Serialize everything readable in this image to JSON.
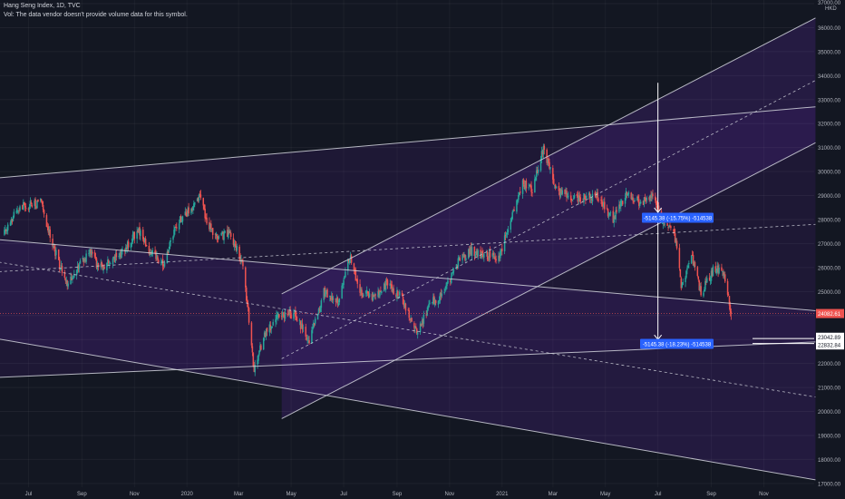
{
  "header": {
    "title": "Hang Seng Index, 1D, TVC",
    "volume_note": "Vol: The data vendor doesn't provide volume data for this symbol."
  },
  "y_axis": {
    "unit": "HKD",
    "ticks": [
      "17000.00",
      "18000.00",
      "19000.00",
      "20000.00",
      "21000.00",
      "22000.00",
      "23000.00",
      "24000.00",
      "25000.00",
      "26000.00",
      "27000.00",
      "28000.00",
      "29000.00",
      "30000.00",
      "31000.00",
      "32000.00",
      "33000.00",
      "34000.00",
      "35000.00",
      "36000.00",
      "37000.00"
    ]
  },
  "x_axis": {
    "ticks": [
      "Jul",
      "Sep",
      "Nov",
      "2020",
      "Mar",
      "May",
      "Jul",
      "Sep",
      "Nov",
      "2021",
      "Mar",
      "May",
      "Jul",
      "Sep",
      "Nov"
    ]
  },
  "price_labels": {
    "last": "24082.61",
    "level_a": "23042.89",
    "level_b": "22832.84"
  },
  "measure_labels": {
    "upper": "-5145.38 (-15.75%) -514538",
    "lower": "-5145.38 (-18.23%) -514538"
  },
  "chart_data": {
    "type": "candlestick",
    "symbol": "Hang Seng Index",
    "interval": "1D",
    "ylim": [
      16900,
      37000
    ],
    "ylabel": "HKD",
    "grid": true,
    "price_path": [
      [
        "2019-06-01",
        27400
      ],
      [
        "2019-06-20",
        28500
      ],
      [
        "2019-07-15",
        28700
      ],
      [
        "2019-08-05",
        26200
      ],
      [
        "2019-08-15",
        25300
      ],
      [
        "2019-09-10",
        26700
      ],
      [
        "2019-09-20",
        26000
      ],
      [
        "2019-10-01",
        26200
      ],
      [
        "2019-10-20",
        26700
      ],
      [
        "2019-11-05",
        27600
      ],
      [
        "2019-11-20",
        26600
      ],
      [
        "2019-12-05",
        26200
      ],
      [
        "2019-12-20",
        27800
      ],
      [
        "2020-01-05",
        28400
      ],
      [
        "2020-01-15",
        29000
      ],
      [
        "2020-01-25",
        27800
      ],
      [
        "2020-02-05",
        27300
      ],
      [
        "2020-02-20",
        27400
      ],
      [
        "2020-03-05",
        26200
      ],
      [
        "2020-03-12",
        24200
      ],
      [
        "2020-03-19",
        21700
      ],
      [
        "2020-03-23",
        22200
      ],
      [
        "2020-04-01",
        23300
      ],
      [
        "2020-04-20",
        24100
      ],
      [
        "2020-05-05",
        24000
      ],
      [
        "2020-05-22",
        22950
      ],
      [
        "2020-06-08",
        25000
      ],
      [
        "2020-06-25",
        24500
      ],
      [
        "2020-07-08",
        26500
      ],
      [
        "2020-07-20",
        25000
      ],
      [
        "2020-08-05",
        24800
      ],
      [
        "2020-08-20",
        25300
      ],
      [
        "2020-09-05",
        24800
      ],
      [
        "2020-09-25",
        23300
      ],
      [
        "2020-10-10",
        24500
      ],
      [
        "2020-10-25",
        24900
      ],
      [
        "2020-11-10",
        26200
      ],
      [
        "2020-11-25",
        26700
      ],
      [
        "2020-12-10",
        26500
      ],
      [
        "2020-12-28",
        26400
      ],
      [
        "2021-01-10",
        27900
      ],
      [
        "2021-01-25",
        29500
      ],
      [
        "2021-02-05",
        29300
      ],
      [
        "2021-02-18",
        31000
      ],
      [
        "2021-03-05",
        29200
      ],
      [
        "2021-03-20",
        28900
      ],
      [
        "2021-04-05",
        28900
      ],
      [
        "2021-04-20",
        29000
      ],
      [
        "2021-05-10",
        28000
      ],
      [
        "2021-05-25",
        29100
      ],
      [
        "2021-06-10",
        28700
      ],
      [
        "2021-06-25",
        29000
      ],
      [
        "2021-07-05",
        28000
      ],
      [
        "2021-07-20",
        27500
      ],
      [
        "2021-07-28",
        25300
      ],
      [
        "2021-08-10",
        26400
      ],
      [
        "2021-08-20",
        24900
      ],
      [
        "2021-09-05",
        26000
      ],
      [
        "2021-09-15",
        25800
      ],
      [
        "2021-09-24",
        24100
      ]
    ],
    "last_price": 24082.61,
    "drawings": [
      {
        "kind": "channel-line",
        "from": [
          "2019-05-15",
          27200
        ],
        "to": [
          "2021-12-31",
          24200
        ]
      },
      {
        "kind": "channel-line",
        "from": [
          "2019-05-15",
          23100
        ],
        "to": [
          "2021-12-31",
          17150
        ]
      },
      {
        "kind": "channel-mid",
        "from": [
          "2019-05-15",
          26300
        ],
        "to": [
          "2021-12-31",
          20600
        ]
      },
      {
        "kind": "channel-line",
        "from": [
          "2019-05-15",
          29700
        ],
        "to": [
          "2021-12-31",
          32700
        ]
      },
      {
        "kind": "channel-line",
        "from": [
          "2019-05-15",
          21400
        ],
        "to": [
          "2021-12-31",
          22900
        ]
      },
      {
        "kind": "channel-mid",
        "from": [
          "2019-05-15",
          25800
        ],
        "to": [
          "2021-12-31",
          27800
        ]
      },
      {
        "kind": "channel-line",
        "from": [
          "2020-04-20",
          24900
        ],
        "to": [
          "2021-12-31",
          36400
        ]
      },
      {
        "kind": "channel-line",
        "from": [
          "2020-04-20",
          19700
        ],
        "to": [
          "2021-12-31",
          31200
        ]
      },
      {
        "kind": "channel-mid",
        "from": [
          "2020-04-20",
          22200
        ],
        "to": [
          "2021-12-31",
          33800
        ]
      }
    ],
    "measure": {
      "x": "2021-07-01",
      "from": 33700,
      "to": 23000,
      "change": -5145.38
    }
  }
}
